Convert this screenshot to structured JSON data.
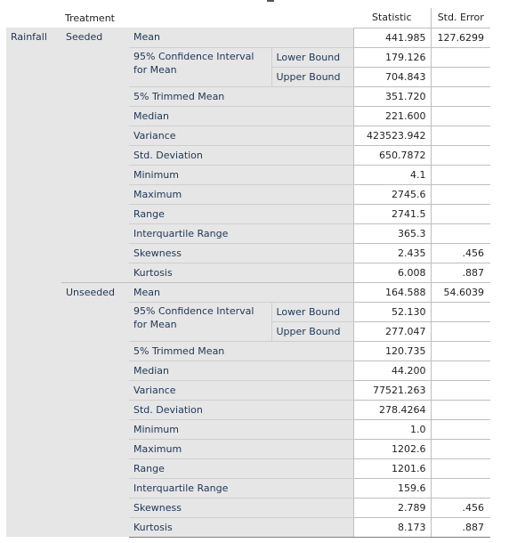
{
  "header": {
    "treatment": "Treatment",
    "statistic": "Statistic",
    "std_error": "Std. Error"
  },
  "variable": "Rainfall",
  "groups": [
    {
      "name": "Seeded",
      "mean": "441.985",
      "mean_se": "127.6299",
      "ci_label": "95% Confidence Interval for Mean",
      "lower_label": "Lower Bound",
      "lower": "179.126",
      "upper_label": "Upper Bound",
      "upper": "704.843",
      "trimmed": "351.720",
      "median": "221.600",
      "variance": "423523.942",
      "std_dev": "650.7872",
      "minimum": "4.1",
      "maximum": "2745.6",
      "range": "2741.5",
      "iqr": "365.3",
      "skewness": "2.435",
      "skewness_se": ".456",
      "kurtosis": "6.008",
      "kurtosis_se": ".887"
    },
    {
      "name": "Unseeded",
      "mean": "164.588",
      "mean_se": "54.6039",
      "ci_label": "95% Confidence Interval for Mean",
      "lower_label": "Lower Bound",
      "lower": "52.130",
      "upper_label": "Upper Bound",
      "upper": "277.047",
      "trimmed": "120.735",
      "median": "44.200",
      "variance": "77521.263",
      "std_dev": "278.4264",
      "minimum": "1.0",
      "maximum": "1202.6",
      "range": "1201.6",
      "iqr": "159.6",
      "skewness": "2.789",
      "skewness_se": ".456",
      "kurtosis": "8.173",
      "kurtosis_se": ".887"
    }
  ],
  "labels": {
    "mean": "Mean",
    "trimmed": "5% Trimmed Mean",
    "median": "Median",
    "variance": "Variance",
    "std_dev": "Std. Deviation",
    "minimum": "Minimum",
    "maximum": "Maximum",
    "range": "Range",
    "iqr": "Interquartile Range",
    "skewness": "Skewness",
    "kurtosis": "Kurtosis"
  }
}
